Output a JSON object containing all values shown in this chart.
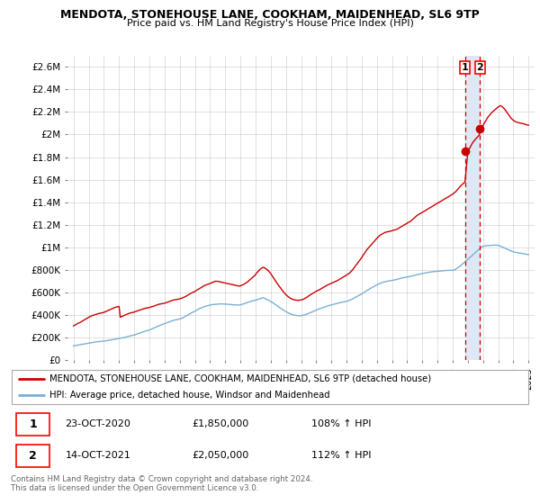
{
  "title": "MENDOTA, STONEHOUSE LANE, COOKHAM, MAIDENHEAD, SL6 9TP",
  "subtitle": "Price paid vs. HM Land Registry's House Price Index (HPI)",
  "legend_line1": "MENDOTA, STONEHOUSE LANE, COOKHAM, MAIDENHEAD, SL6 9TP (detached house)",
  "legend_line2": "HPI: Average price, detached house, Windsor and Maidenhead",
  "annotation1_num": "1",
  "annotation1_date": "23-OCT-2020",
  "annotation1_price": "£1,850,000",
  "annotation1_hpi": "108% ↑ HPI",
  "annotation2_num": "2",
  "annotation2_date": "14-OCT-2021",
  "annotation2_price": "£2,050,000",
  "annotation2_hpi": "112% ↑ HPI",
  "footer": "Contains HM Land Registry data © Crown copyright and database right 2024.\nThis data is licensed under the Open Government Licence v3.0.",
  "red_color": "#cc0000",
  "blue_color": "#7bafd4",
  "shade_color": "#dce9f5",
  "dashed_color": "#cc0000",
  "ylim": [
    0,
    2700000
  ],
  "yticks": [
    0,
    200000,
    400000,
    600000,
    800000,
    1000000,
    1200000,
    1400000,
    1600000,
    1800000,
    2000000,
    2200000,
    2400000,
    2600000
  ],
  "ytick_labels": [
    "£0",
    "£200K",
    "£400K",
    "£600K",
    "£800K",
    "£1M",
    "£1.2M",
    "£1.4M",
    "£1.6M",
    "£1.8M",
    "£2M",
    "£2.2M",
    "£2.4M",
    "£2.6M"
  ],
  "xlim_start": 1994.6,
  "xlim_end": 2025.4,
  "xticks": [
    1995,
    1996,
    1997,
    1998,
    1999,
    2000,
    2001,
    2002,
    2003,
    2004,
    2005,
    2006,
    2007,
    2008,
    2009,
    2010,
    2011,
    2012,
    2013,
    2014,
    2015,
    2016,
    2017,
    2018,
    2019,
    2020,
    2021,
    2022,
    2023,
    2024,
    2025
  ],
  "sale1_x": 2020.81,
  "sale1_y": 1850000,
  "sale2_x": 2021.79,
  "sale2_y": 2050000,
  "red_line_x": [
    1995.0,
    1995.08,
    1995.17,
    1995.25,
    1995.33,
    1995.42,
    1995.5,
    1995.58,
    1995.67,
    1995.75,
    1995.83,
    1995.92,
    1996.0,
    1996.08,
    1996.17,
    1996.25,
    1996.33,
    1996.42,
    1996.5,
    1996.58,
    1996.67,
    1996.75,
    1996.83,
    1996.92,
    1997.0,
    1997.08,
    1997.17,
    1997.25,
    1997.33,
    1997.42,
    1997.5,
    1997.58,
    1997.67,
    1997.75,
    1997.83,
    1997.92,
    1998.0,
    1998.08,
    1998.17,
    1998.25,
    1998.33,
    1998.42,
    1998.5,
    1998.58,
    1998.67,
    1998.75,
    1998.83,
    1998.92,
    1999.0,
    1999.08,
    1999.17,
    1999.25,
    1999.33,
    1999.42,
    1999.5,
    1999.58,
    1999.67,
    1999.75,
    1999.83,
    1999.92,
    2000.0,
    2000.08,
    2000.17,
    2000.25,
    2000.33,
    2000.42,
    2000.5,
    2000.58,
    2000.67,
    2000.75,
    2000.83,
    2000.92,
    2001.0,
    2001.08,
    2001.17,
    2001.25,
    2001.33,
    2001.42,
    2001.5,
    2001.58,
    2001.67,
    2001.75,
    2001.83,
    2001.92,
    2002.0,
    2002.08,
    2002.17,
    2002.25,
    2002.33,
    2002.42,
    2002.5,
    2002.58,
    2002.67,
    2002.75,
    2002.83,
    2002.92,
    2003.0,
    2003.08,
    2003.17,
    2003.25,
    2003.33,
    2003.42,
    2003.5,
    2003.58,
    2003.67,
    2003.75,
    2003.83,
    2003.92,
    2004.0,
    2004.08,
    2004.17,
    2004.25,
    2004.33,
    2004.42,
    2004.5,
    2004.58,
    2004.67,
    2004.75,
    2004.83,
    2004.92,
    2005.0,
    2005.08,
    2005.17,
    2005.25,
    2005.33,
    2005.42,
    2005.5,
    2005.58,
    2005.67,
    2005.75,
    2005.83,
    2005.92,
    2006.0,
    2006.08,
    2006.17,
    2006.25,
    2006.33,
    2006.42,
    2006.5,
    2006.58,
    2006.67,
    2006.75,
    2006.83,
    2006.92,
    2007.0,
    2007.08,
    2007.17,
    2007.25,
    2007.33,
    2007.42,
    2007.5,
    2007.58,
    2007.67,
    2007.75,
    2007.83,
    2007.92,
    2008.0,
    2008.08,
    2008.17,
    2008.25,
    2008.33,
    2008.42,
    2008.5,
    2008.58,
    2008.67,
    2008.75,
    2008.83,
    2008.92,
    2009.0,
    2009.08,
    2009.17,
    2009.25,
    2009.33,
    2009.42,
    2009.5,
    2009.58,
    2009.67,
    2009.75,
    2009.83,
    2009.92,
    2010.0,
    2010.08,
    2010.17,
    2010.25,
    2010.33,
    2010.42,
    2010.5,
    2010.58,
    2010.67,
    2010.75,
    2010.83,
    2010.92,
    2011.0,
    2011.08,
    2011.17,
    2011.25,
    2011.33,
    2011.42,
    2011.5,
    2011.58,
    2011.67,
    2011.75,
    2011.83,
    2011.92,
    2012.0,
    2012.08,
    2012.17,
    2012.25,
    2012.33,
    2012.42,
    2012.5,
    2012.58,
    2012.67,
    2012.75,
    2012.83,
    2012.92,
    2013.0,
    2013.08,
    2013.17,
    2013.25,
    2013.33,
    2013.42,
    2013.5,
    2013.58,
    2013.67,
    2013.75,
    2013.83,
    2013.92,
    2014.0,
    2014.08,
    2014.17,
    2014.25,
    2014.33,
    2014.42,
    2014.5,
    2014.58,
    2014.67,
    2014.75,
    2014.83,
    2014.92,
    2015.0,
    2015.08,
    2015.17,
    2015.25,
    2015.33,
    2015.42,
    2015.5,
    2015.58,
    2015.67,
    2015.75,
    2015.83,
    2015.92,
    2016.0,
    2016.08,
    2016.17,
    2016.25,
    2016.33,
    2016.42,
    2016.5,
    2016.58,
    2016.67,
    2016.75,
    2016.83,
    2016.92,
    2017.0,
    2017.08,
    2017.17,
    2017.25,
    2017.33,
    2017.42,
    2017.5,
    2017.58,
    2017.67,
    2017.75,
    2017.83,
    2017.92,
    2018.0,
    2018.08,
    2018.17,
    2018.25,
    2018.33,
    2018.42,
    2018.5,
    2018.58,
    2018.67,
    2018.75,
    2018.83,
    2018.92,
    2019.0,
    2019.08,
    2019.17,
    2019.25,
    2019.33,
    2019.42,
    2019.5,
    2019.58,
    2019.67,
    2019.75,
    2019.83,
    2019.92,
    2020.0,
    2020.08,
    2020.17,
    2020.25,
    2020.33,
    2020.42,
    2020.5,
    2020.58,
    2020.67,
    2020.75,
    2020.81,
    2021.0,
    2021.08,
    2021.17,
    2021.25,
    2021.33,
    2021.42,
    2021.5,
    2021.58,
    2021.67,
    2021.75,
    2021.79,
    2022.0,
    2022.08,
    2022.17,
    2022.25,
    2022.33,
    2022.42,
    2022.5,
    2022.58,
    2022.67,
    2022.75,
    2022.83,
    2022.92,
    2023.0,
    2023.08,
    2023.17,
    2023.25,
    2023.33,
    2023.42,
    2023.5,
    2023.58,
    2023.67,
    2023.75,
    2023.83,
    2023.92,
    2024.0,
    2024.08,
    2024.17,
    2024.25,
    2024.33,
    2024.42,
    2024.5,
    2024.58,
    2024.67,
    2024.75,
    2024.83,
    2024.92,
    2025.0
  ],
  "red_line_y": [
    305000,
    312000,
    318000,
    325000,
    330000,
    335000,
    342000,
    348000,
    355000,
    362000,
    368000,
    375000,
    382000,
    388000,
    392000,
    398000,
    400000,
    405000,
    408000,
    412000,
    415000,
    418000,
    420000,
    422000,
    425000,
    430000,
    435000,
    440000,
    445000,
    450000,
    455000,
    460000,
    465000,
    470000,
    472000,
    475000,
    478000,
    382000,
    388000,
    392000,
    398000,
    402000,
    408000,
    412000,
    416000,
    420000,
    422000,
    425000,
    428000,
    432000,
    436000,
    440000,
    444000,
    448000,
    452000,
    456000,
    460000,
    462000,
    464000,
    466000,
    468000,
    472000,
    475000,
    478000,
    482000,
    486000,
    490000,
    495000,
    498000,
    500000,
    502000,
    504000,
    506000,
    510000,
    514000,
    518000,
    522000,
    526000,
    530000,
    534000,
    536000,
    538000,
    540000,
    542000,
    545000,
    548000,
    552000,
    558000,
    562000,
    568000,
    575000,
    582000,
    588000,
    595000,
    600000,
    605000,
    610000,
    618000,
    625000,
    632000,
    638000,
    645000,
    652000,
    658000,
    665000,
    668000,
    672000,
    676000,
    680000,
    685000,
    690000,
    695000,
    700000,
    700000,
    700000,
    698000,
    695000,
    692000,
    690000,
    688000,
    685000,
    682000,
    680000,
    678000,
    675000,
    672000,
    670000,
    668000,
    665000,
    662000,
    660000,
    658000,
    660000,
    665000,
    670000,
    675000,
    682000,
    690000,
    698000,
    708000,
    718000,
    728000,
    738000,
    748000,
    760000,
    775000,
    788000,
    800000,
    810000,
    818000,
    825000,
    820000,
    812000,
    805000,
    795000,
    782000,
    768000,
    752000,
    735000,
    718000,
    700000,
    682000,
    668000,
    652000,
    638000,
    622000,
    608000,
    595000,
    582000,
    572000,
    562000,
    555000,
    548000,
    542000,
    538000,
    535000,
    533000,
    532000,
    532000,
    533000,
    535000,
    538000,
    542000,
    548000,
    555000,
    562000,
    570000,
    578000,
    585000,
    592000,
    598000,
    605000,
    612000,
    618000,
    622000,
    628000,
    635000,
    642000,
    648000,
    655000,
    662000,
    668000,
    672000,
    678000,
    682000,
    688000,
    692000,
    698000,
    702000,
    708000,
    715000,
    722000,
    728000,
    735000,
    742000,
    748000,
    755000,
    762000,
    770000,
    780000,
    792000,
    805000,
    820000,
    835000,
    850000,
    865000,
    880000,
    895000,
    910000,
    928000,
    945000,
    962000,
    978000,
    992000,
    1005000,
    1018000,
    1030000,
    1042000,
    1055000,
    1068000,
    1080000,
    1092000,
    1102000,
    1112000,
    1118000,
    1125000,
    1130000,
    1135000,
    1138000,
    1140000,
    1142000,
    1145000,
    1148000,
    1152000,
    1155000,
    1158000,
    1162000,
    1168000,
    1175000,
    1182000,
    1188000,
    1195000,
    1202000,
    1208000,
    1215000,
    1222000,
    1228000,
    1235000,
    1245000,
    1255000,
    1265000,
    1275000,
    1285000,
    1292000,
    1298000,
    1305000,
    1312000,
    1318000,
    1325000,
    1330000,
    1338000,
    1345000,
    1352000,
    1358000,
    1365000,
    1372000,
    1378000,
    1385000,
    1392000,
    1398000,
    1405000,
    1412000,
    1418000,
    1425000,
    1432000,
    1438000,
    1445000,
    1452000,
    1458000,
    1465000,
    1472000,
    1480000,
    1490000,
    1502000,
    1515000,
    1528000,
    1540000,
    1552000,
    1562000,
    1572000,
    1580000,
    1850000,
    1870000,
    1892000,
    1912000,
    1930000,
    1945000,
    1958000,
    1970000,
    1982000,
    1995000,
    2050000,
    2080000,
    2100000,
    2120000,
    2138000,
    2155000,
    2170000,
    2182000,
    2195000,
    2205000,
    2215000,
    2225000,
    2235000,
    2245000,
    2252000,
    2255000,
    2248000,
    2238000,
    2225000,
    2210000,
    2195000,
    2178000,
    2162000,
    2148000,
    2135000,
    2125000,
    2118000,
    2112000,
    2108000,
    2105000,
    2102000,
    2100000,
    2098000,
    2095000,
    2092000,
    2088000,
    2085000,
    2082000
  ],
  "blue_line_x": [
    1995.0,
    1995.08,
    1995.17,
    1995.25,
    1995.33,
    1995.42,
    1995.5,
    1995.58,
    1995.67,
    1995.75,
    1995.83,
    1995.92,
    1996.0,
    1996.08,
    1996.17,
    1996.25,
    1996.33,
    1996.42,
    1996.5,
    1996.58,
    1996.67,
    1996.75,
    1996.83,
    1996.92,
    1997.0,
    1997.08,
    1997.17,
    1997.25,
    1997.33,
    1997.42,
    1997.5,
    1997.58,
    1997.67,
    1997.75,
    1997.83,
    1997.92,
    1998.0,
    1998.08,
    1998.17,
    1998.25,
    1998.33,
    1998.42,
    1998.5,
    1998.58,
    1998.67,
    1998.75,
    1998.83,
    1998.92,
    1999.0,
    1999.08,
    1999.17,
    1999.25,
    1999.33,
    1999.42,
    1999.5,
    1999.58,
    1999.67,
    1999.75,
    1999.83,
    1999.92,
    2000.0,
    2000.08,
    2000.17,
    2000.25,
    2000.33,
    2000.42,
    2000.5,
    2000.58,
    2000.67,
    2000.75,
    2000.83,
    2000.92,
    2001.0,
    2001.08,
    2001.17,
    2001.25,
    2001.33,
    2001.42,
    2001.5,
    2001.58,
    2001.67,
    2001.75,
    2001.83,
    2001.92,
    2002.0,
    2002.08,
    2002.17,
    2002.25,
    2002.33,
    2002.42,
    2002.5,
    2002.58,
    2002.67,
    2002.75,
    2002.83,
    2002.92,
    2003.0,
    2003.08,
    2003.17,
    2003.25,
    2003.33,
    2003.42,
    2003.5,
    2003.58,
    2003.67,
    2003.75,
    2003.83,
    2003.92,
    2004.0,
    2004.08,
    2004.17,
    2004.25,
    2004.33,
    2004.42,
    2004.5,
    2004.58,
    2004.67,
    2004.75,
    2004.83,
    2004.92,
    2005.0,
    2005.08,
    2005.17,
    2005.25,
    2005.33,
    2005.42,
    2005.5,
    2005.58,
    2005.67,
    2005.75,
    2005.83,
    2005.92,
    2006.0,
    2006.08,
    2006.17,
    2006.25,
    2006.33,
    2006.42,
    2006.5,
    2006.58,
    2006.67,
    2006.75,
    2006.83,
    2006.92,
    2007.0,
    2007.08,
    2007.17,
    2007.25,
    2007.33,
    2007.42,
    2007.5,
    2007.58,
    2007.67,
    2007.75,
    2007.83,
    2007.92,
    2008.0,
    2008.08,
    2008.17,
    2008.25,
    2008.33,
    2008.42,
    2008.5,
    2008.58,
    2008.67,
    2008.75,
    2008.83,
    2008.92,
    2009.0,
    2009.08,
    2009.17,
    2009.25,
    2009.33,
    2009.42,
    2009.5,
    2009.58,
    2009.67,
    2009.75,
    2009.83,
    2009.92,
    2010.0,
    2010.08,
    2010.17,
    2010.25,
    2010.33,
    2010.42,
    2010.5,
    2010.58,
    2010.67,
    2010.75,
    2010.83,
    2010.92,
    2011.0,
    2011.08,
    2011.17,
    2011.25,
    2011.33,
    2011.42,
    2011.5,
    2011.58,
    2011.67,
    2011.75,
    2011.83,
    2011.92,
    2012.0,
    2012.08,
    2012.17,
    2012.25,
    2012.33,
    2012.42,
    2012.5,
    2012.58,
    2012.67,
    2012.75,
    2012.83,
    2012.92,
    2013.0,
    2013.08,
    2013.17,
    2013.25,
    2013.33,
    2013.42,
    2013.5,
    2013.58,
    2013.67,
    2013.75,
    2013.83,
    2013.92,
    2014.0,
    2014.08,
    2014.17,
    2014.25,
    2014.33,
    2014.42,
    2014.5,
    2014.58,
    2014.67,
    2014.75,
    2014.83,
    2014.92,
    2015.0,
    2015.08,
    2015.17,
    2015.25,
    2015.33,
    2015.42,
    2015.5,
    2015.58,
    2015.67,
    2015.75,
    2015.83,
    2015.92,
    2016.0,
    2016.08,
    2016.17,
    2016.25,
    2016.33,
    2016.42,
    2016.5,
    2016.58,
    2016.67,
    2016.75,
    2016.83,
    2016.92,
    2017.0,
    2017.08,
    2017.17,
    2017.25,
    2017.33,
    2017.42,
    2017.5,
    2017.58,
    2017.67,
    2017.75,
    2017.83,
    2017.92,
    2018.0,
    2018.08,
    2018.17,
    2018.25,
    2018.33,
    2018.42,
    2018.5,
    2018.58,
    2018.67,
    2018.75,
    2018.83,
    2018.92,
    2019.0,
    2019.08,
    2019.17,
    2019.25,
    2019.33,
    2019.42,
    2019.5,
    2019.58,
    2019.67,
    2019.75,
    2019.83,
    2019.92,
    2020.0,
    2020.08,
    2020.17,
    2020.25,
    2020.33,
    2020.42,
    2020.5,
    2020.58,
    2020.67,
    2020.75,
    2020.83,
    2020.92,
    2021.0,
    2021.08,
    2021.17,
    2021.25,
    2021.33,
    2021.42,
    2021.5,
    2021.58,
    2021.67,
    2021.75,
    2021.83,
    2021.92,
    2022.0,
    2022.08,
    2022.17,
    2022.25,
    2022.33,
    2022.42,
    2022.5,
    2022.58,
    2022.67,
    2022.75,
    2022.83,
    2022.92,
    2023.0,
    2023.08,
    2023.17,
    2023.25,
    2023.33,
    2023.42,
    2023.5,
    2023.58,
    2023.67,
    2023.75,
    2023.83,
    2023.92,
    2024.0,
    2024.08,
    2024.17,
    2024.25,
    2024.33,
    2024.42,
    2024.5,
    2024.58,
    2024.67,
    2024.75,
    2024.83,
    2024.92,
    2025.0
  ],
  "blue_line_y": [
    128000,
    130000,
    132000,
    134000,
    136000,
    138000,
    140000,
    142000,
    144000,
    146000,
    148000,
    150000,
    152000,
    154000,
    156000,
    158000,
    160000,
    162000,
    164000,
    165000,
    166000,
    167000,
    168000,
    169000,
    170000,
    172000,
    174000,
    176000,
    178000,
    180000,
    182000,
    184000,
    186000,
    188000,
    190000,
    192000,
    194000,
    196000,
    198000,
    200000,
    202000,
    205000,
    208000,
    211000,
    214000,
    217000,
    220000,
    222000,
    224000,
    228000,
    232000,
    236000,
    240000,
    244000,
    248000,
    252000,
    256000,
    260000,
    263000,
    266000,
    269000,
    274000,
    278000,
    283000,
    288000,
    293000,
    298000,
    303000,
    308000,
    313000,
    317000,
    321000,
    325000,
    330000,
    334000,
    338000,
    342000,
    346000,
    350000,
    354000,
    357000,
    360000,
    362000,
    364000,
    366000,
    370000,
    375000,
    380000,
    386000,
    392000,
    398000,
    405000,
    412000,
    419000,
    425000,
    430000,
    435000,
    442000,
    448000,
    454000,
    460000,
    465000,
    470000,
    474000,
    478000,
    481000,
    484000,
    487000,
    490000,
    492000,
    494000,
    495000,
    496000,
    497000,
    498000,
    499000,
    500000,
    500000,
    500000,
    499000,
    498000,
    497000,
    496000,
    495000,
    494000,
    493000,
    492000,
    491000,
    490000,
    490000,
    490000,
    490000,
    492000,
    495000,
    498000,
    502000,
    506000,
    510000,
    514000,
    518000,
    522000,
    525000,
    528000,
    530000,
    533000,
    536000,
    540000,
    544000,
    548000,
    552000,
    555000,
    550000,
    545000,
    540000,
    534000,
    528000,
    522000,
    515000,
    508000,
    500000,
    492000,
    484000,
    476000,
    468000,
    460000,
    452000,
    445000,
    438000,
    432000,
    426000,
    420000,
    415000,
    410000,
    406000,
    403000,
    400000,
    398000,
    396000,
    395000,
    395000,
    396000,
    398000,
    400000,
    403000,
    407000,
    411000,
    415000,
    420000,
    425000,
    430000,
    435000,
    440000,
    445000,
    450000,
    454000,
    458000,
    462000,
    466000,
    470000,
    474000,
    478000,
    482000,
    485000,
    488000,
    491000,
    494000,
    497000,
    500000,
    503000,
    506000,
    509000,
    512000,
    514000,
    516000,
    518000,
    520000,
    522000,
    526000,
    530000,
    535000,
    540000,
    546000,
    552000,
    558000,
    564000,
    570000,
    576000,
    582000,
    588000,
    595000,
    602000,
    610000,
    618000,
    625000,
    632000,
    638000,
    644000,
    650000,
    656000,
    662000,
    668000,
    674000,
    679000,
    684000,
    688000,
    692000,
    695000,
    698000,
    700000,
    702000,
    704000,
    706000,
    708000,
    710000,
    712000,
    715000,
    718000,
    722000,
    725000,
    728000,
    730000,
    732000,
    734000,
    736000,
    738000,
    740000,
    742000,
    745000,
    748000,
    752000,
    755000,
    758000,
    760000,
    762000,
    764000,
    766000,
    768000,
    770000,
    772000,
    775000,
    778000,
    780000,
    782000,
    784000,
    785000,
    786000,
    787000,
    788000,
    789000,
    790000,
    791000,
    792000,
    793000,
    794000,
    795000,
    796000,
    797000,
    797000,
    797000,
    797000,
    797000,
    800000,
    805000,
    812000,
    820000,
    828000,
    836000,
    845000,
    855000,
    865000,
    875000,
    885000,
    895000,
    905000,
    915000,
    925000,
    935000,
    945000,
    955000,
    965000,
    975000,
    985000,
    995000,
    1005000,
    1010000,
    1012000,
    1014000,
    1015000,
    1016000,
    1017000,
    1018000,
    1019000,
    1020000,
    1020000,
    1020000,
    1020000,
    1018000,
    1015000,
    1010000,
    1005000,
    1000000,
    995000,
    990000,
    985000,
    980000,
    975000,
    970000,
    965000,
    960000,
    958000,
    956000,
    954000,
    952000,
    950000,
    948000,
    946000,
    944000,
    942000,
    940000,
    938000,
    936000
  ]
}
